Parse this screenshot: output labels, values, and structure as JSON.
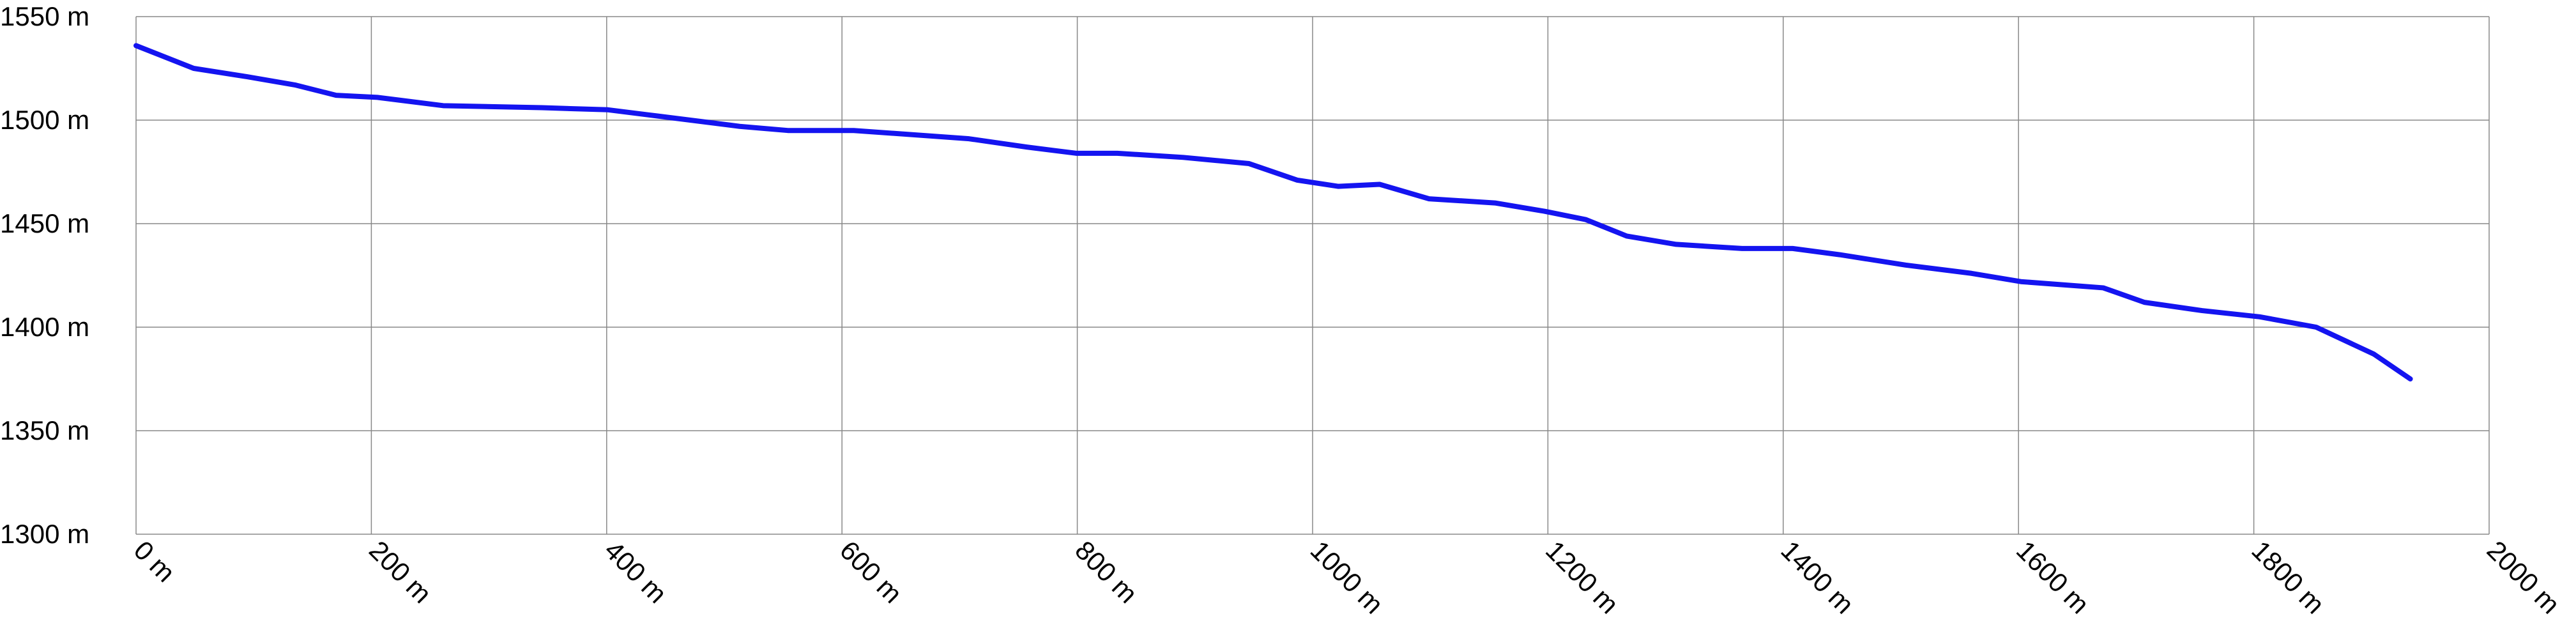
{
  "chart_data": {
    "type": "line",
    "x": [
      0,
      49,
      94,
      135,
      170,
      205,
      261,
      345,
      401,
      443,
      513,
      554,
      610,
      708,
      757,
      799,
      834,
      890,
      946,
      987,
      1022,
      1057,
      1099,
      1155,
      1197,
      1232,
      1267,
      1309,
      1365,
      1408,
      1448,
      1504,
      1560,
      1602,
      1672,
      1707,
      1756,
      1805,
      1853,
      1902,
      1933
    ],
    "series": [
      {
        "color": "#1414f0",
        "values": [
          1536,
          1525,
          1521,
          1517,
          1512,
          1511,
          1507,
          1506,
          1505,
          1502,
          1497,
          1495,
          1495,
          1491,
          1487,
          1484,
          1484,
          1482,
          1479,
          1471,
          1468,
          1469,
          1462,
          1460,
          1456,
          1452,
          1444,
          1440,
          1438,
          1438,
          1435,
          1430,
          1426,
          1422,
          1419,
          1412,
          1408,
          1405,
          1400,
          1387,
          1375
        ]
      }
    ],
    "xlim": [
      0,
      2000
    ],
    "xticks": [
      {
        "value": 0,
        "label": "0 m"
      },
      {
        "value": 200,
        "label": "200 m"
      },
      {
        "value": 400,
        "label": "400 m"
      },
      {
        "value": 600,
        "label": "600 m"
      },
      {
        "value": 800,
        "label": "800 m"
      },
      {
        "value": 1000,
        "label": "1000 m"
      },
      {
        "value": 1200,
        "label": "1200 m"
      },
      {
        "value": 1400,
        "label": "1400 m"
      },
      {
        "value": 1600,
        "label": "1600 m"
      },
      {
        "value": 1800,
        "label": "1800 m"
      },
      {
        "value": 2000,
        "label": "2000 m"
      }
    ],
    "ylim": [
      1300,
      1550
    ],
    "yticks": [
      {
        "value": 1300,
        "label": "1300 m"
      },
      {
        "value": 1350,
        "label": "1350 m"
      },
      {
        "value": 1400,
        "label": "1400 m"
      },
      {
        "value": 1450,
        "label": "1450 m"
      },
      {
        "value": 1500,
        "label": "1500 m"
      },
      {
        "value": 1550,
        "label": "1550 m"
      }
    ],
    "grid": true
  }
}
